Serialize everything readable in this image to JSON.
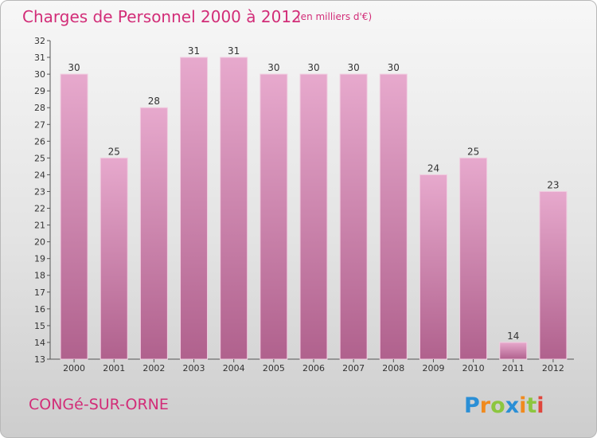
{
  "chart_data": {
    "type": "bar",
    "title": "Charges de Personnel 2000 à 2012",
    "subtitle": "(en milliers d'€)",
    "categories": [
      "2000",
      "2001",
      "2002",
      "2003",
      "2004",
      "2005",
      "2006",
      "2007",
      "2008",
      "2009",
      "2010",
      "2011",
      "2012"
    ],
    "values": [
      30,
      25,
      28,
      31,
      31,
      30,
      30,
      30,
      30,
      24,
      25,
      14,
      23
    ],
    "xlabel": "",
    "ylabel": "",
    "ylim": [
      13,
      32
    ],
    "yticks": [
      13,
      14,
      15,
      16,
      17,
      18,
      19,
      20,
      21,
      22,
      23,
      24,
      25,
      26,
      27,
      28,
      29,
      30,
      31,
      32
    ],
    "grid": false,
    "bar_color": "#c97fa6",
    "data_labels": true
  },
  "footer": {
    "commune": "CONGé-SUR-ORNE",
    "logo_letters": [
      {
        "ch": "P",
        "color": "#2a8fd6"
      },
      {
        "ch": "r",
        "color": "#f08a1e"
      },
      {
        "ch": "o",
        "color": "#8cc63f"
      },
      {
        "ch": "x",
        "color": "#2a8fd6"
      },
      {
        "ch": "i",
        "color": "#f08a1e"
      },
      {
        "ch": "t",
        "color": "#8cc63f"
      },
      {
        "ch": "i",
        "color": "#e0463c"
      }
    ]
  }
}
